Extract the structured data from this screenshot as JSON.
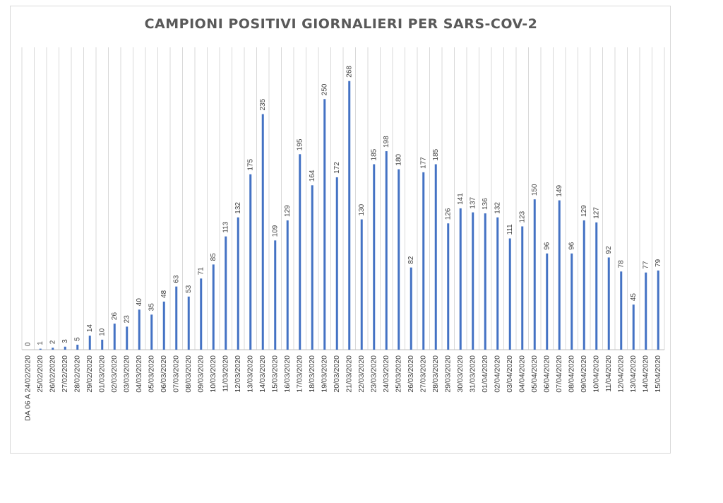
{
  "chart_data": {
    "type": "bar",
    "title": "CAMPIONI POSITIVI GIORNALIERI PER SARS-COV-2",
    "xlabel": "",
    "ylabel": "",
    "ylim": [
      0,
      300
    ],
    "grid": "vertical",
    "legend": "none",
    "bar_color": "#4472c4",
    "categories": [
      "DA 06 A 24/02/2020",
      "25/02/2020",
      "26/02/2020",
      "27/02/2020",
      "28/02/2020",
      "29/02/2020",
      "01/03/2020",
      "02/03/2020",
      "03/03/2020",
      "04/03/2020",
      "05/03/2020",
      "06/03/2020",
      "07/03/2020",
      "08/03/2020",
      "09/03/2020",
      "10/03/2020",
      "11/03/2020",
      "12/03/2020",
      "13/03/2020",
      "14/03/2020",
      "15/03/2020",
      "16/03/2020",
      "17/03/2020",
      "18/03/2020",
      "19/03/2020",
      "20/03/2020",
      "21/03/2020",
      "22/03/2020",
      "23/03/2020",
      "24/03/2020",
      "25/03/2020",
      "26/03/2020",
      "27/03/2020",
      "28/03/2020",
      "29/03/2020",
      "30/03/2020",
      "31/03/2020",
      "01/04/2020",
      "02/04/2020",
      "03/04/2020",
      "04/04/2020",
      "05/04/2020",
      "06/04/2020",
      "07/04/2020",
      "08/04/2020",
      "09/04/2020",
      "10/04/2020",
      "11/04/2020",
      "12/04/2020",
      "13/04/2020",
      "14/04/2020",
      "15/04/2020"
    ],
    "values": [
      0,
      1,
      2,
      3,
      5,
      14,
      10,
      26,
      23,
      40,
      35,
      48,
      63,
      53,
      71,
      85,
      113,
      132,
      175,
      235,
      109,
      129,
      195,
      164,
      250,
      172,
      268,
      130,
      185,
      198,
      180,
      82,
      177,
      185,
      126,
      141,
      137,
      136,
      132,
      111,
      123,
      150,
      96,
      149,
      96,
      129,
      127,
      92,
      78,
      45,
      77,
      79
    ]
  }
}
